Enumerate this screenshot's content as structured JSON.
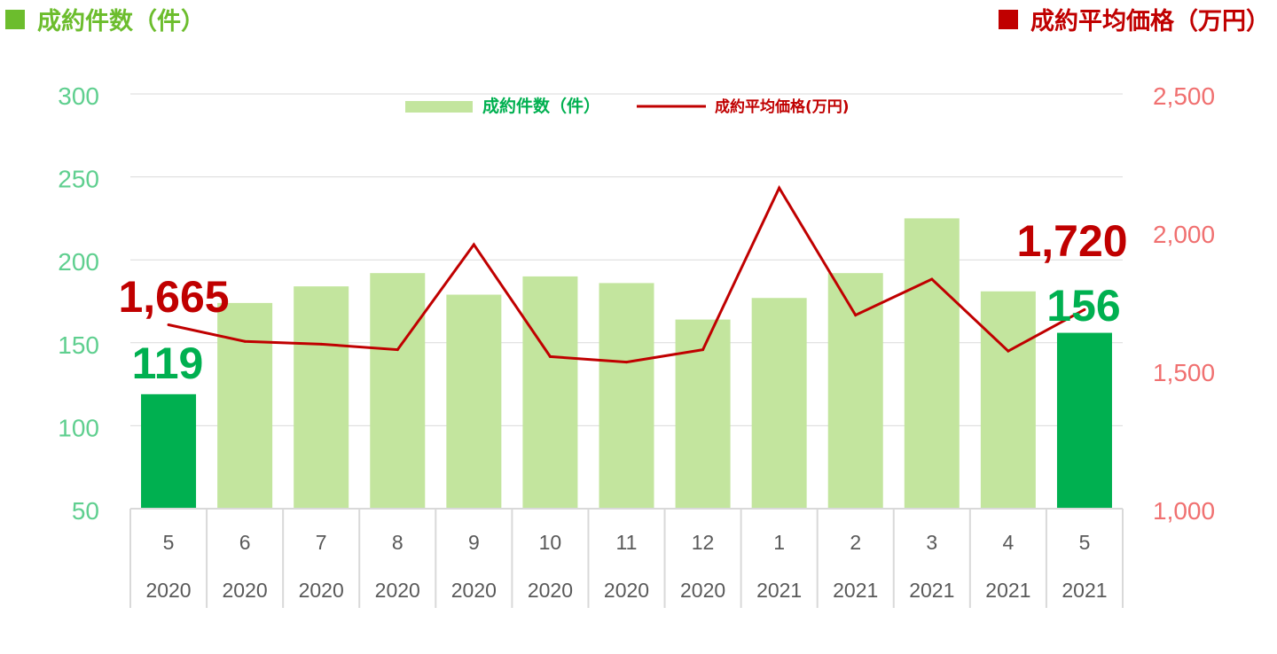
{
  "header": {
    "left_label": "成約件数（件）",
    "right_label": "成約平均価格（万円）"
  },
  "chart_data": {
    "type": "bar+line",
    "categories": [
      {
        "month": "5",
        "year": "2020"
      },
      {
        "month": "6",
        "year": "2020"
      },
      {
        "month": "7",
        "year": "2020"
      },
      {
        "month": "8",
        "year": "2020"
      },
      {
        "month": "9",
        "year": "2020"
      },
      {
        "month": "10",
        "year": "2020"
      },
      {
        "month": "11",
        "year": "2020"
      },
      {
        "month": "12",
        "year": "2020"
      },
      {
        "month": "1",
        "year": "2021"
      },
      {
        "month": "2",
        "year": "2021"
      },
      {
        "month": "3",
        "year": "2021"
      },
      {
        "month": "4",
        "year": "2021"
      },
      {
        "month": "5",
        "year": "2021"
      }
    ],
    "series": [
      {
        "name": "成約件数（件）",
        "type": "bar",
        "axis": "left",
        "values": [
          119,
          174,
          184,
          192,
          179,
          190,
          186,
          164,
          177,
          192,
          225,
          181,
          156
        ],
        "highlight_indices": [
          0,
          12
        ]
      },
      {
        "name": "成約平均価格(万円)",
        "type": "line",
        "axis": "right",
        "values": [
          1665,
          1605,
          1595,
          1575,
          1955,
          1550,
          1530,
          1575,
          2160,
          1700,
          1830,
          1570,
          1720
        ]
      }
    ],
    "y_left": {
      "min": 50,
      "max": 300,
      "ticks": [
        "50",
        "100",
        "150",
        "200",
        "250",
        "300"
      ]
    },
    "y_right": {
      "min": 1000,
      "max": 2500,
      "ticks": [
        "1,000",
        "1,500",
        "2,000",
        "2,500"
      ]
    },
    "annotations": [
      {
        "text": "1,665",
        "series": "line",
        "index": 0
      },
      {
        "text": "119",
        "series": "bar",
        "index": 0
      },
      {
        "text": "1,720",
        "series": "line",
        "index": 12
      },
      {
        "text": "156",
        "series": "bar",
        "index": 12
      }
    ],
    "legend_position": "top-center",
    "grid": true,
    "colors": {
      "bar": "#c3e59e",
      "bar_highlight": "#00b050",
      "line": "#c00000",
      "left_axis_text": "#5fcf8f",
      "right_axis_text": "#f07070",
      "grid": "#d9d9d9",
      "category_text": "#595959",
      "annotation_bar": "#00b050",
      "annotation_line": "#c00000"
    }
  }
}
